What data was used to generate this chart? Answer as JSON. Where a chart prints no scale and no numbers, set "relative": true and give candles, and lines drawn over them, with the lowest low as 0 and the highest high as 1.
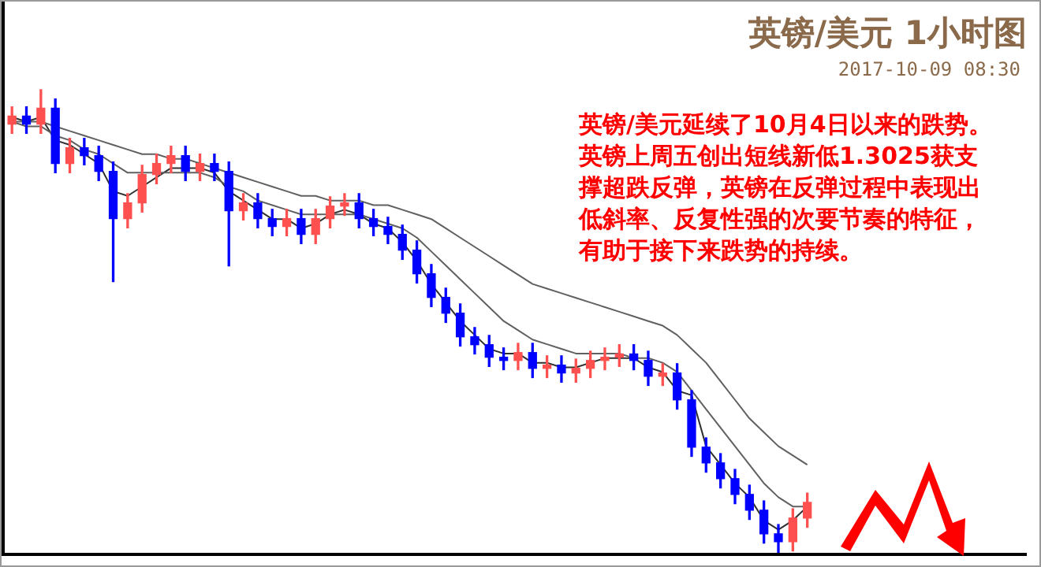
{
  "chart_data": {
    "type": "candlestick",
    "title": "英镑/美元 1小时图",
    "subtitle": "2017-10-09 08:30",
    "annotations": [
      "英镑/美元延续了10月4日以来的跌势。英镑上周五创出短线新低1.3025获支撑超跌反弹，英镑在反弹过程中表现出低斜率、反复性强的次要节奏的特征，有助于接下来跌势的持续。"
    ],
    "relative": true,
    "categories": [
      null,
      null,
      null,
      null,
      null,
      null,
      null,
      null,
      null,
      null,
      null,
      null,
      null,
      null,
      null,
      null,
      null,
      null,
      null,
      null,
      null,
      null,
      null,
      null,
      null,
      null,
      null,
      null,
      null,
      null,
      null,
      null,
      null,
      null,
      null,
      null,
      null,
      null,
      null,
      null,
      null,
      null,
      null,
      null,
      null,
      null,
      null,
      null,
      null,
      null,
      null,
      null,
      null,
      null,
      null,
      null
    ],
    "ohlc": [
      [
        0.925,
        0.962,
        0.905,
        0.942
      ],
      [
        0.942,
        0.962,
        0.905,
        0.925
      ],
      [
        0.925,
        1.0,
        0.905,
        0.959
      ],
      [
        0.959,
        0.979,
        0.82,
        0.84
      ],
      [
        0.84,
        0.894,
        0.82,
        0.874
      ],
      [
        0.874,
        0.894,
        0.837,
        0.857
      ],
      [
        0.857,
        0.877,
        0.803,
        0.823
      ],
      [
        0.823,
        0.843,
        0.585,
        0.721
      ],
      [
        0.721,
        0.775,
        0.701,
        0.755
      ],
      [
        0.755,
        0.836,
        0.735,
        0.816
      ],
      [
        0.816,
        0.86,
        0.796,
        0.84
      ],
      [
        0.84,
        0.877,
        0.82,
        0.857
      ],
      [
        0.857,
        0.877,
        0.803,
        0.823
      ],
      [
        0.823,
        0.86,
        0.803,
        0.84
      ],
      [
        0.84,
        0.86,
        0.803,
        0.823
      ],
      [
        0.823,
        0.843,
        0.619,
        0.738
      ],
      [
        0.738,
        0.775,
        0.718,
        0.755
      ],
      [
        0.755,
        0.775,
        0.701,
        0.721
      ],
      [
        0.721,
        0.741,
        0.684,
        0.704
      ],
      [
        0.704,
        0.741,
        0.684,
        0.721
      ],
      [
        0.721,
        0.741,
        0.667,
        0.687
      ],
      [
        0.687,
        0.741,
        0.667,
        0.721
      ],
      [
        0.721,
        0.768,
        0.701,
        0.748
      ],
      [
        0.748,
        0.775,
        0.728,
        0.755
      ],
      [
        0.755,
        0.775,
        0.701,
        0.721
      ],
      [
        0.721,
        0.741,
        0.684,
        0.704
      ],
      [
        0.704,
        0.724,
        0.667,
        0.687
      ],
      [
        0.687,
        0.707,
        0.633,
        0.653
      ],
      [
        0.653,
        0.673,
        0.582,
        0.602
      ],
      [
        0.602,
        0.622,
        0.531,
        0.551
      ],
      [
        0.551,
        0.571,
        0.497,
        0.517
      ],
      [
        0.517,
        0.537,
        0.446,
        0.466
      ],
      [
        0.466,
        0.486,
        0.429,
        0.449
      ],
      [
        0.449,
        0.469,
        0.402,
        0.422
      ],
      [
        0.422,
        0.442,
        0.395,
        0.415
      ],
      [
        0.415,
        0.452,
        0.395,
        0.432
      ],
      [
        0.432,
        0.452,
        0.378,
        0.398
      ],
      [
        0.398,
        0.425,
        0.378,
        0.405
      ],
      [
        0.405,
        0.425,
        0.368,
        0.388
      ],
      [
        0.388,
        0.418,
        0.368,
        0.398
      ],
      [
        0.398,
        0.435,
        0.378,
        0.415
      ],
      [
        0.415,
        0.442,
        0.395,
        0.422
      ],
      [
        0.422,
        0.449,
        0.402,
        0.429
      ],
      [
        0.429,
        0.449,
        0.395,
        0.415
      ],
      [
        0.415,
        0.435,
        0.361,
        0.381
      ],
      [
        0.381,
        0.408,
        0.361,
        0.388
      ],
      [
        0.388,
        0.408,
        0.31,
        0.33
      ],
      [
        0.33,
        0.35,
        0.208,
        0.228
      ],
      [
        0.228,
        0.248,
        0.174,
        0.194
      ],
      [
        0.194,
        0.214,
        0.14,
        0.16
      ],
      [
        0.16,
        0.18,
        0.106,
        0.126
      ],
      [
        0.126,
        0.146,
        0.072,
        0.092
      ],
      [
        0.092,
        0.112,
        0.021,
        0.041
      ],
      [
        0.041,
        0.061,
        0.0,
        0.024
      ],
      [
        0.024,
        0.095,
        0.004,
        0.075
      ],
      [
        0.075,
        0.129,
        0.055,
        0.109
      ]
    ],
    "colors": [
      "#ff5050",
      "#0000ff",
      "#ff5050",
      "#0000ff",
      "#ff5050",
      "#0000ff",
      "#0000ff",
      "#0000ff",
      "#ff5050",
      "#ff5050",
      "#ff5050",
      "#ff5050",
      "#0000ff",
      "#ff5050",
      "#0000ff",
      "#0000ff",
      "#ff5050",
      "#0000ff",
      "#0000ff",
      "#ff5050",
      "#0000ff",
      "#ff5050",
      "#ff5050",
      "#ff5050",
      "#0000ff",
      "#0000ff",
      "#0000ff",
      "#0000ff",
      "#0000ff",
      "#0000ff",
      "#0000ff",
      "#0000ff",
      "#0000ff",
      "#0000ff",
      "#0000ff",
      "#ff5050",
      "#0000ff",
      "#ff5050",
      "#0000ff",
      "#ff5050",
      "#ff5050",
      "#ff5050",
      "#ff5050",
      "#0000ff",
      "#0000ff",
      "#ff5050",
      "#0000ff",
      "#0000ff",
      "#0000ff",
      "#0000ff",
      "#0000ff",
      "#0000ff",
      "#0000ff",
      "#0000ff",
      "#ff5050",
      "#ff5050"
    ],
    "series": [
      {
        "type": "line",
        "color": "#606060",
        "values": [
          0.93,
          0.93,
          0.93,
          0.92,
          0.91,
          0.9,
          0.89,
          0.88,
          0.87,
          0.86,
          0.86,
          0.85,
          0.85,
          0.84,
          0.83,
          0.82,
          0.81,
          0.8,
          0.79,
          0.78,
          0.77,
          0.77,
          0.76,
          0.76,
          0.76,
          0.75,
          0.75,
          0.74,
          0.73,
          0.72,
          0.7,
          0.68,
          0.66,
          0.64,
          0.62,
          0.6,
          0.58,
          0.57,
          0.56,
          0.55,
          0.54,
          0.53,
          0.52,
          0.51,
          0.5,
          0.49,
          0.47,
          0.44,
          0.41,
          0.37,
          0.33,
          0.29,
          0.26,
          0.23,
          0.21,
          0.19
        ]
      },
      {
        "type": "line",
        "color": "#606060",
        "values": [
          0.93,
          0.92,
          0.92,
          0.9,
          0.89,
          0.87,
          0.86,
          0.84,
          0.82,
          0.82,
          0.82,
          0.82,
          0.82,
          0.82,
          0.81,
          0.79,
          0.78,
          0.76,
          0.75,
          0.74,
          0.73,
          0.73,
          0.73,
          0.73,
          0.73,
          0.72,
          0.71,
          0.7,
          0.68,
          0.65,
          0.62,
          0.59,
          0.56,
          0.53,
          0.5,
          0.48,
          0.46,
          0.45,
          0.44,
          0.43,
          0.43,
          0.43,
          0.43,
          0.42,
          0.42,
          0.41,
          0.39,
          0.35,
          0.31,
          0.27,
          0.23,
          0.19,
          0.15,
          0.12,
          0.1,
          0.1
        ]
      },
      {
        "type": "line",
        "color": "#303030",
        "values": [
          0.94,
          0.93,
          0.94,
          0.89,
          0.88,
          0.86,
          0.84,
          0.78,
          0.77,
          0.79,
          0.81,
          0.83,
          0.83,
          0.83,
          0.82,
          0.78,
          0.76,
          0.74,
          0.72,
          0.72,
          0.7,
          0.71,
          0.73,
          0.74,
          0.73,
          0.71,
          0.7,
          0.67,
          0.63,
          0.58,
          0.54,
          0.5,
          0.47,
          0.44,
          0.43,
          0.43,
          0.41,
          0.41,
          0.4,
          0.4,
          0.41,
          0.42,
          0.42,
          0.42,
          0.4,
          0.39,
          0.35,
          0.34,
          0.23,
          0.19,
          0.15,
          0.12,
          0.07,
          0.05,
          0.07,
          0.1
        ]
      }
    ]
  }
}
